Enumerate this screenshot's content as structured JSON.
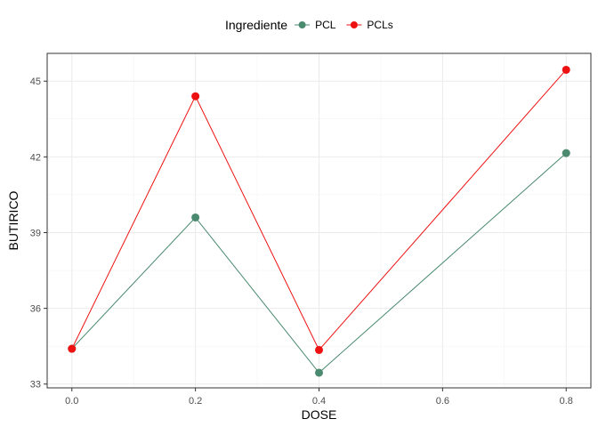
{
  "chart_data": {
    "type": "line",
    "xlabel": "DOSE",
    "ylabel": "BUTIRICO",
    "xlim": [
      -0.04,
      0.84
    ],
    "ylim": [
      32.85,
      46.1
    ],
    "xticks": [
      0.0,
      0.2,
      0.4,
      0.6,
      0.8
    ],
    "xtick_labels": [
      "0.0",
      "0.2",
      "0.4",
      "0.6",
      "0.8"
    ],
    "yticks": [
      33,
      36,
      39,
      42,
      45
    ],
    "ytick_labels": [
      "33",
      "36",
      "39",
      "42",
      "45"
    ],
    "grid": true,
    "legend": {
      "title": "Ingrediente",
      "placement": "top"
    },
    "series": [
      {
        "name": "PCL",
        "color": "#4a8a6f",
        "x": [
          0.0,
          0.2,
          0.4,
          0.8
        ],
        "values": [
          34.4,
          39.6,
          33.45,
          42.15
        ]
      },
      {
        "name": "PCLs",
        "color": "#ee1111",
        "x": [
          0.0,
          0.2,
          0.4,
          0.8
        ],
        "values": [
          34.4,
          44.4,
          34.35,
          45.45
        ]
      }
    ]
  }
}
